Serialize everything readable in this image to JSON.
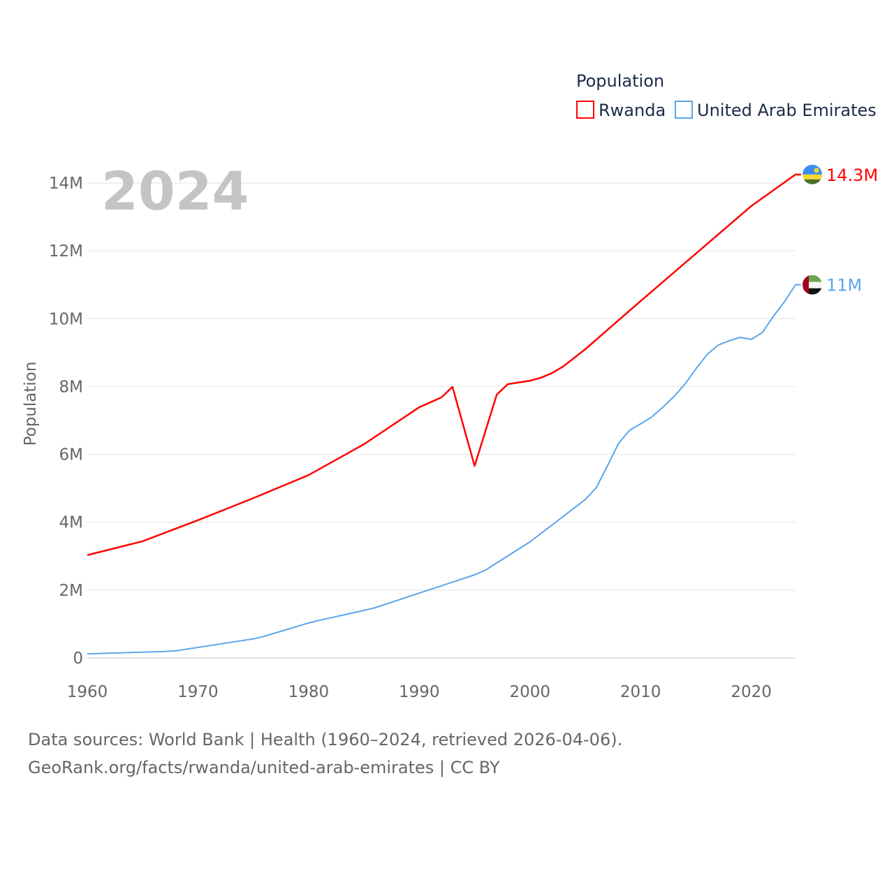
{
  "chart_data": {
    "type": "line",
    "title": "Population",
    "ylabel": "Population",
    "xlabel": "",
    "year_label": "2024",
    "xlim": [
      1960,
      2024
    ],
    "ylim": [
      0,
      14
    ],
    "x_ticks": [
      "1960",
      "1970",
      "1980",
      "1990",
      "2000",
      "2010",
      "2020"
    ],
    "y_ticks": [
      "0",
      "2M",
      "4M",
      "6M",
      "8M",
      "10M",
      "12M",
      "14M"
    ],
    "grid": true,
    "legend_position": "top-right",
    "units": "millions",
    "series": [
      {
        "name": "Rwanda",
        "color": "#ff0000",
        "end_label": "14.3M",
        "flag": "rwanda-flag",
        "x": [
          1960,
          1965,
          1970,
          1975,
          1980,
          1985,
          1990,
          1992,
          1993,
          1995,
          1997,
          1998,
          2000,
          2001,
          2002,
          2003,
          2005,
          2010,
          2015,
          2020,
          2024
        ],
        "y": [
          3.03,
          3.44,
          4.06,
          4.71,
          5.39,
          6.3,
          7.39,
          7.68,
          7.99,
          5.66,
          7.76,
          8.07,
          8.17,
          8.26,
          8.4,
          8.59,
          9.1,
          10.52,
          11.92,
          13.32,
          14.25
        ]
      },
      {
        "name": "United Arab Emirates",
        "color": "#5aa5ea",
        "end_label": "11M",
        "flag": "uae-flag",
        "x": [
          1960,
          1967,
          1968,
          1970,
          1975,
          1976,
          1980,
          1981,
          1985,
          1986,
          1990,
          1995,
          1996,
          1997,
          2000,
          2005,
          2006,
          2007,
          2008,
          2009,
          2010,
          2011,
          2012,
          2013,
          2014,
          2015,
          2016,
          2017,
          2018,
          2019,
          2020,
          2021,
          2022,
          2023,
          2024
        ],
        "y": [
          0.12,
          0.19,
          0.21,
          0.31,
          0.56,
          0.64,
          1.03,
          1.11,
          1.4,
          1.48,
          1.91,
          2.45,
          2.59,
          2.8,
          3.42,
          4.67,
          5.02,
          5.66,
          6.32,
          6.71,
          6.9,
          7.1,
          7.39,
          7.7,
          8.07,
          8.52,
          8.94,
          9.22,
          9.35,
          9.45,
          9.39,
          9.59,
          10.07,
          10.5,
          11.0
        ]
      }
    ]
  },
  "footer": {
    "line1": "Data sources: World Bank | Health (1960–2024, retrieved 2026-04-06).",
    "line2": "GeoRank.org/facts/rwanda/united-arab-emirates | CC BY"
  }
}
